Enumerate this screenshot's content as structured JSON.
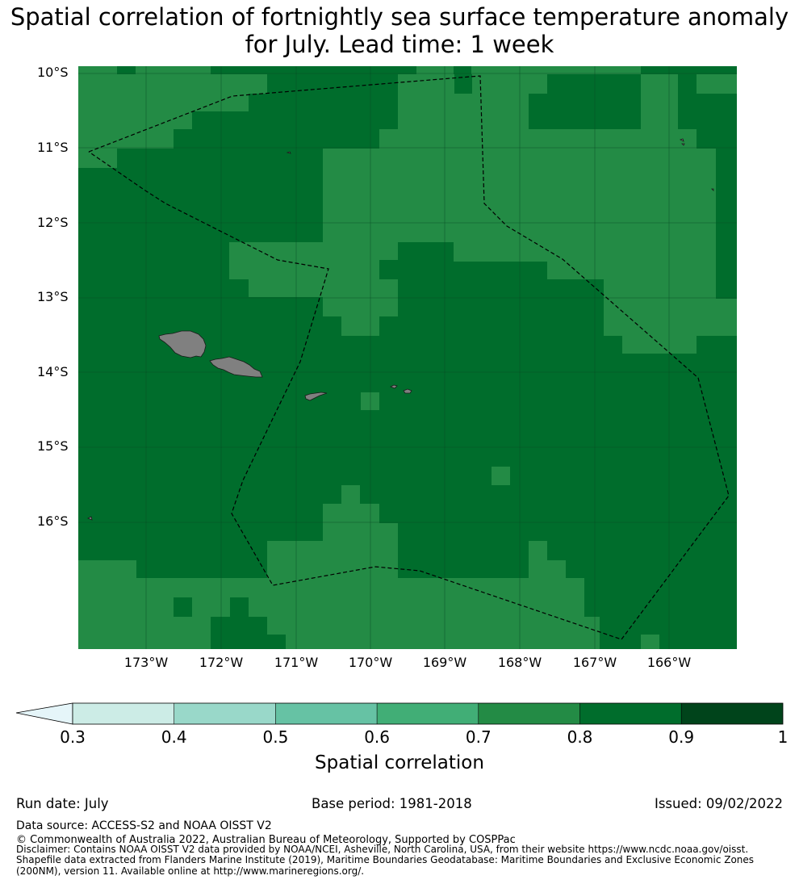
{
  "title": {
    "line1": "Spatial correlation of fortnightly sea surface temperature anomaly",
    "line2": "for July. Lead time: 1 week"
  },
  "map": {
    "lat_labels": [
      "10°S",
      "11°S",
      "12°S",
      "13°S",
      "14°S",
      "15°S",
      "16°S"
    ],
    "lon_labels": [
      "173°W",
      "172°W",
      "171°W",
      "170°W",
      "169°W",
      "168°W",
      "167°W",
      "166°W"
    ],
    "land_color": "#808080",
    "boundary_style": "dashed black line (EEZ)",
    "colors": {
      "c0.7_0.8": "#238b45",
      "c0.8_0.9": "#006d2c"
    }
  },
  "colorbar": {
    "label": "Spatial correlation",
    "ticks": [
      "0.3",
      "0.4",
      "0.5",
      "0.6",
      "0.7",
      "0.8",
      "0.9",
      "1"
    ],
    "extend": "min",
    "colors": [
      "#e5f5f9",
      "#ccece6",
      "#99d8c9",
      "#66c2a4",
      "#41ae76",
      "#238b45",
      "#006d2c",
      "#00441b"
    ]
  },
  "footer": {
    "run_date": "Run date: July",
    "base_period": "Base period: 1981-2018",
    "issued": "Issued: 09/02/2022",
    "data_source": "Data source: ACCESS-S2 and NOAA OISST V2",
    "copyright": "© Commonwealth of Australia 2022, Australian Bureau of Meteorology, Supported by COSPPac",
    "disclaimer_1": "Disclaimer: Contains NOAA OISST V2 data provided by NOAA/NCEI, Asheville, North Carolina, USA, from their website https://www.ncdc.noaa.gov/oisst.",
    "disclaimer_2": "Shapefile data extracted from Flanders Marine Institute (2019), Maritime Boundaries Geodatabase: Maritime Boundaries and Exclusive Economic Zones",
    "disclaimer_3": "(200NM), version 11. Available online at http://www.marineregions.org/."
  }
}
